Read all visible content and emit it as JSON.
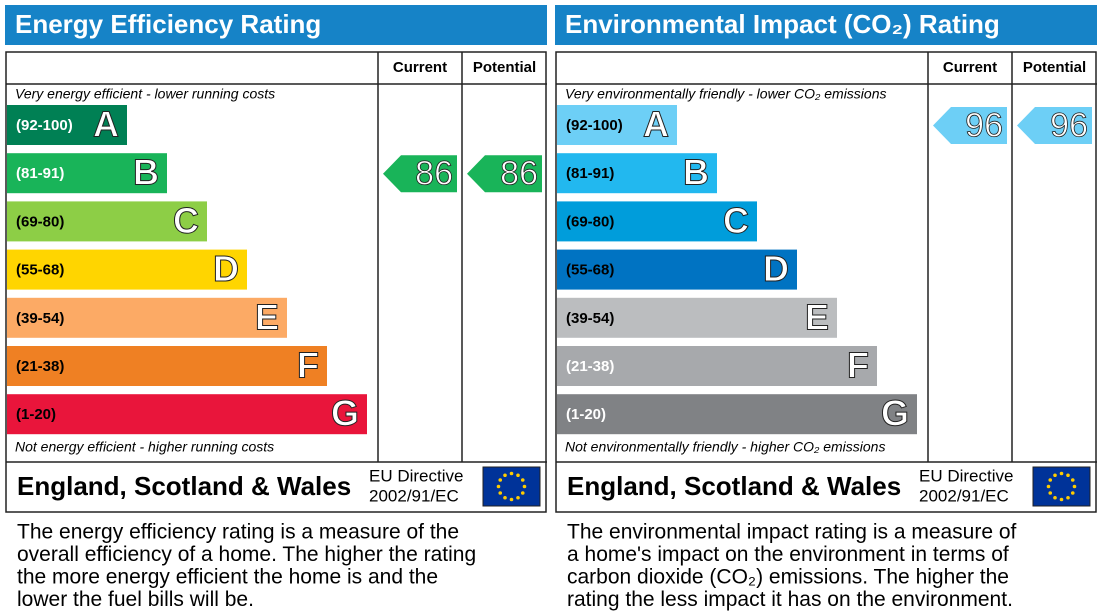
{
  "panels": [
    {
      "title": "Energy Efficiency Rating",
      "columns": [
        "Current",
        "Potential"
      ],
      "top_note": "Very energy efficient - lower running costs",
      "bottom_note": "Not energy efficient - higher running costs",
      "bands": [
        {
          "range": "(92-100)",
          "letter": "A",
          "color": "#008054",
          "label_color": "#ffffff"
        },
        {
          "range": "(81-91)",
          "letter": "B",
          "color": "#19b459",
          "label_color": "#ffffff"
        },
        {
          "range": "(69-80)",
          "letter": "C",
          "color": "#8dce46",
          "label_color": "#000000"
        },
        {
          "range": "(55-68)",
          "letter": "D",
          "color": "#ffd500",
          "label_color": "#000000"
        },
        {
          "range": "(39-54)",
          "letter": "E",
          "color": "#fcaa65",
          "label_color": "#000000"
        },
        {
          "range": "(21-38)",
          "letter": "F",
          "color": "#ef8023",
          "label_color": "#000000"
        },
        {
          "range": "(1-20)",
          "letter": "G",
          "color": "#e9153b",
          "label_color": "#000000"
        }
      ],
      "ratings": [
        86,
        86
      ],
      "region": "England, Scotland & Wales",
      "directive": [
        "EU Directive",
        "2002/91/EC"
      ],
      "description": [
        "The energy efficiency rating is a measure of the",
        "overall efficiency of a home. The higher the rating",
        "the more energy efficient the home is and the",
        "lower the fuel bills will be."
      ]
    },
    {
      "title": "Environmental Impact (CO₂) Rating",
      "columns": [
        "Current",
        "Potential"
      ],
      "top_note": "Very environmentally friendly - lower CO₂ emissions",
      "bottom_note": "Not environmentally friendly - higher CO₂ emissions",
      "bands": [
        {
          "range": "(92-100)",
          "letter": "A",
          "color": "#6dcff6",
          "label_color": "#000000"
        },
        {
          "range": "(81-91)",
          "letter": "B",
          "color": "#22b8ef",
          "label_color": "#000000"
        },
        {
          "range": "(69-80)",
          "letter": "C",
          "color": "#009ddb",
          "label_color": "#000000"
        },
        {
          "range": "(55-68)",
          "letter": "D",
          "color": "#0073c2",
          "label_color": "#000000"
        },
        {
          "range": "(39-54)",
          "letter": "E",
          "color": "#bbbdbf",
          "label_color": "#000000"
        },
        {
          "range": "(21-38)",
          "letter": "F",
          "color": "#a7a9ac",
          "label_color": "#ffffff"
        },
        {
          "range": "(1-20)",
          "letter": "G",
          "color": "#808285",
          "label_color": "#ffffff"
        }
      ],
      "ratings": [
        96,
        96
      ],
      "region": "England, Scotland & Wales",
      "directive": [
        "EU Directive",
        "2002/91/EC"
      ],
      "description": [
        "The environmental impact rating is a measure of",
        "a home's impact on the environment in terms of",
        "carbon dioxide (CO₂) emissions. The higher the",
        "rating the less impact it has on the environment."
      ]
    }
  ]
}
